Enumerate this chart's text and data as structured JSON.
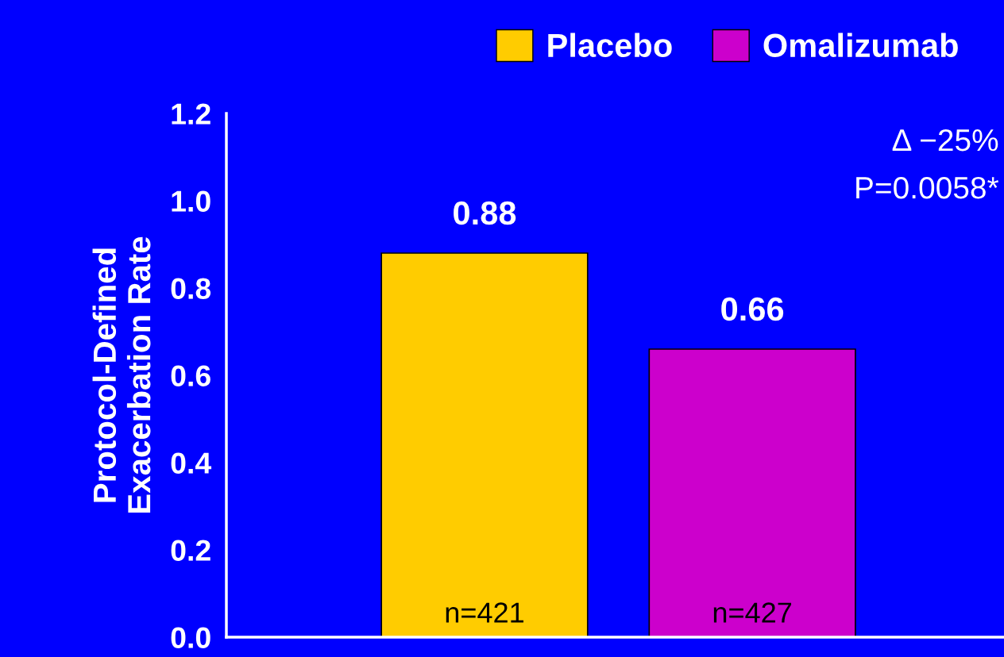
{
  "chart_data": {
    "type": "bar",
    "ylabel": "Protocol-Defined\nExacerbation Rate",
    "categories": [
      null,
      null
    ],
    "series": [
      {
        "name": "Placebo",
        "color": "#ffcc00",
        "values": [
          0.88,
          null
        ]
      },
      {
        "name": "Omalizumab",
        "color": "#cc00cc",
        "values": [
          null,
          0.66
        ]
      }
    ],
    "ylim": [
      0,
      1.2
    ],
    "yticks": [
      {
        "value": 0,
        "label": "0.0"
      },
      {
        "value": 0.2,
        "label": "0.2"
      },
      {
        "value": 0.4,
        "label": "0.4"
      },
      {
        "value": 0.6,
        "label": "0.6"
      },
      {
        "value": 0.8,
        "label": "0.8"
      },
      {
        "value": 1.0,
        "label": "1.0"
      },
      {
        "value": 1.2,
        "label": "1.2"
      }
    ],
    "data_labels": true,
    "grid": false,
    "legend": "top right",
    "annotations": [
      "n=421",
      "n=427",
      "Δ −25%",
      "P=0.0058*"
    ]
  }
}
